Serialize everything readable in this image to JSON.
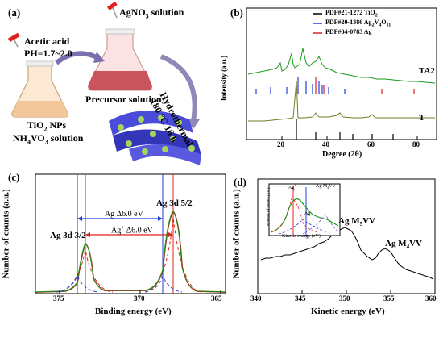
{
  "panel_a": {
    "label": "(a)",
    "acid_line1": "Acetic acid",
    "acid_line2": "PH=1.7~2.0",
    "agno3": "AgNO",
    "agno3_sub": "3",
    "agno3_rest": " solution",
    "hydro1": "Hydrothermal",
    "hydro2": "180 °C  16 h",
    "precursor": "Precursor solution",
    "tio2": "TiO",
    "tio2_sub": "2",
    "tio2_rest": " NPs",
    "nh4": "NH",
    "nh4_sub": "4",
    "nh4_mid": "VO",
    "nh4_sub2": "3",
    "nh4_rest": " solution"
  },
  "panel_b": {
    "label": "(b)",
    "ylabel": "Intensity (a.u.)",
    "xlabel": "Degree (2θ)",
    "xticks": [
      "20",
      "40",
      "60",
      "80"
    ],
    "legend": [
      {
        "text": "PDF#21-1272  TiO",
        "sub": "2",
        "color": "#000000"
      },
      {
        "text": "PDF#20-1386  Ag",
        "sub": "2",
        "text2": "V",
        "sub2": "4",
        "text3": "O",
        "sub3": "11",
        "color": "#1f3bd8"
      },
      {
        "text": "PDF#04-0783  Ag",
        "color": "#e0221e"
      }
    ],
    "series": [
      {
        "name": "TA2",
        "color": "#1a9a1a"
      },
      {
        "name": "T",
        "color": "#7a7a2a"
      }
    ]
  },
  "panel_c": {
    "label": "(c)",
    "ylabel": "Number of counts (a.u.)",
    "xlabel": "Binding energy (eV)",
    "xticks": [
      "375",
      "370",
      "365"
    ],
    "peak1": "Ag 3d 3/2",
    "peak2": "Ag 3d 5/2",
    "arrow1": "Ag  Δ6.0 eV",
    "arrow2": "Ag",
    "arrow2_sup": "+",
    "arrow2_rest": "  Δ6.0 eV"
  },
  "panel_d": {
    "label": "(d)",
    "ylabel": "Number of counts (a.u.)",
    "xlabel": "Kinetic energy (eV)",
    "xticks": [
      "340",
      "345",
      "350",
      "355",
      "360"
    ],
    "peak1": "Ag M",
    "peak1_sub": "5",
    "peak1_rest": "VV",
    "peak2": "Ag M",
    "peak2_sub": "4",
    "peak2_rest": "VV",
    "inset": {
      "ylabel": "Number of counts (a.u.)",
      "xlabel": "Kinetic energy (eV)",
      "lbl_agplus": "Ag",
      "lbl_agplus_sup": "+",
      "lbl_ag": "Ag",
      "lbl_m4": "Ag M",
      "lbl_m4_sub": "4",
      "lbl_m4_rest": "VV"
    }
  },
  "colors": {
    "blue": "#1f3bd8",
    "red": "#e0221e",
    "green": "#1a9a1a",
    "olive": "#7a7a2a",
    "purple": "#7c5cc4",
    "brown": "#8b3a1a"
  }
}
